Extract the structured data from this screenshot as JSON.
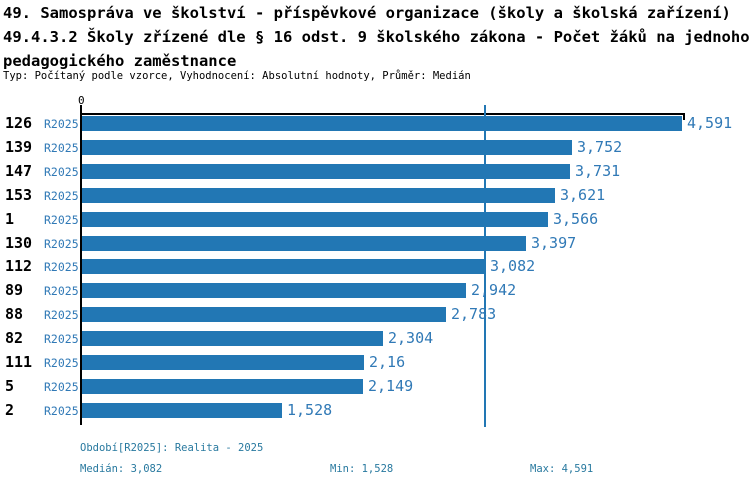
{
  "title": {
    "line1": "49. Samospráva ve školství - příspěvkové organizace (školy a školská zařízení)",
    "line2": "49.4.3.2 Školy zřízené dle § 16 odst. 9 školského zákona - Počet žáků na jednoho",
    "line3": "pedagogického zaměstnance",
    "meta": "Typ: Počítaný podle vzorce, Vyhodnocení: Absolutní hodnoty, Průměr: Medián"
  },
  "chart_data": {
    "type": "bar",
    "orientation": "horizontal",
    "title": "Počet žáků na jednoho pedagogického zaměstnance",
    "x_axis": {
      "origin_tick_label": "0",
      "max": 4.591,
      "grid": false
    },
    "period_label": "R2025",
    "categories": [
      "126",
      "139",
      "147",
      "153",
      "1",
      "130",
      "112",
      "89",
      "88",
      "82",
      "111",
      "5",
      "2"
    ],
    "values": [
      4.591,
      3.752,
      3.731,
      3.621,
      3.566,
      3.397,
      3.082,
      2.942,
      2.783,
      2.304,
      2.16,
      2.149,
      1.528
    ],
    "value_labels": [
      "4,591",
      "3,752",
      "3,731",
      "3,621",
      "3,566",
      "3,397",
      "3,082",
      "2,942",
      "2,783",
      "2,304",
      "2,16",
      "2,149",
      "1,528"
    ],
    "median_value": 3.082,
    "rows": [
      {
        "category": "126",
        "period": "R2025",
        "value": 4.591,
        "label": "4,591"
      },
      {
        "category": "139",
        "period": "R2025",
        "value": 3.752,
        "label": "3,752"
      },
      {
        "category": "147",
        "period": "R2025",
        "value": 3.731,
        "label": "3,731"
      },
      {
        "category": "153",
        "period": "R2025",
        "value": 3.621,
        "label": "3,621"
      },
      {
        "category": "1",
        "period": "R2025",
        "value": 3.566,
        "label": "3,566"
      },
      {
        "category": "130",
        "period": "R2025",
        "value": 3.397,
        "label": "3,397"
      },
      {
        "category": "112",
        "period": "R2025",
        "value": 3.082,
        "label": "3,082"
      },
      {
        "category": "89",
        "period": "R2025",
        "value": 2.942,
        "label": "2,942"
      },
      {
        "category": "88",
        "period": "R2025",
        "value": 2.783,
        "label": "2,783"
      },
      {
        "category": "82",
        "period": "R2025",
        "value": 2.304,
        "label": "2,304"
      },
      {
        "category": "111",
        "period": "R2025",
        "value": 2.16,
        "label": "2,16"
      },
      {
        "category": "5",
        "period": "R2025",
        "value": 2.149,
        "label": "2,149"
      },
      {
        "category": "2",
        "period": "R2025",
        "value": 1.528,
        "label": "1,528"
      }
    ],
    "colors": {
      "bar": "#2277B4",
      "label_blue": "#3079B6",
      "footer_blue": "#28799F",
      "axis": "#000000"
    }
  },
  "footer": {
    "period": "Období[R2025]: Realita - 2025",
    "median": "Medián: 3,082",
    "min": "Min: 1,528",
    "max": "Max: 4,591"
  }
}
